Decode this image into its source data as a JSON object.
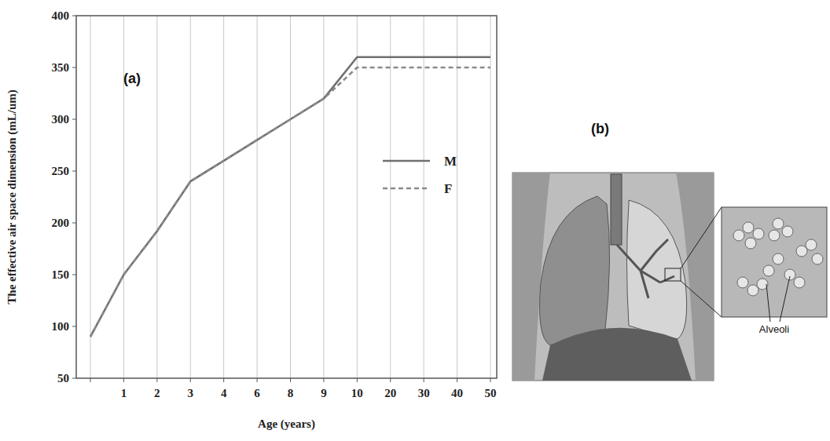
{
  "chart_data": {
    "type": "line",
    "panel_label": "(a)",
    "x_label": "Age (years)",
    "y_label": "The effective air space dimension  (mL/um)",
    "categories": [
      null,
      1,
      2,
      3,
      4,
      6,
      8,
      9,
      10,
      20,
      30,
      40,
      50
    ],
    "series": [
      {
        "name": "M",
        "color": "#707070",
        "line_style": "solid",
        "values": [
          90,
          150,
          192,
          240,
          260,
          280,
          300,
          320,
          360,
          360,
          360,
          360,
          360
        ]
      },
      {
        "name": "F",
        "color": "#8a8a8a",
        "line_style": "dashed",
        "values": [
          90,
          150,
          192,
          240,
          260,
          280,
          300,
          320,
          350,
          350,
          350,
          350,
          350
        ]
      }
    ],
    "ylim": [
      50,
      400
    ],
    "yticks": [
      50,
      100,
      150,
      200,
      250,
      300,
      350,
      400
    ],
    "grid": true,
    "legend": "center right"
  },
  "panel_b": {
    "label": "(b)",
    "callout": "Alveoli"
  }
}
